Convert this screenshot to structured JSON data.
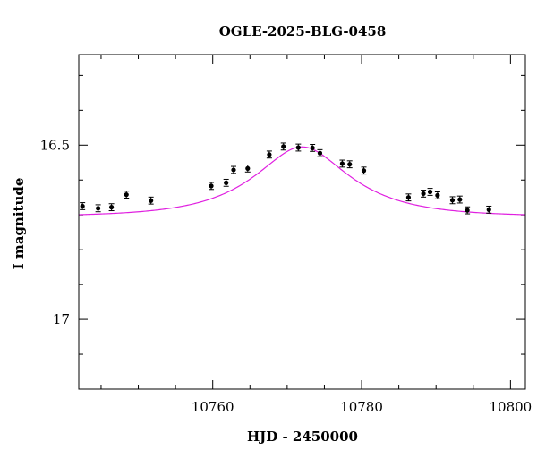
{
  "chart_data": {
    "type": "scatter",
    "title": "OGLE-2025-BLG-0458",
    "xlabel": "HJD - 2450000",
    "ylabel": "I magnitude",
    "xlim": [
      10742,
      10802
    ],
    "ylim": [
      17.2,
      16.24
    ],
    "y_inverted": true,
    "x_major_ticks": [
      10760,
      10780,
      10800
    ],
    "x_minor_ticks": [
      10745,
      10750,
      10755,
      10765,
      10770,
      10775,
      10785,
      10790,
      10795
    ],
    "y_major_ticks": [
      16.5,
      17.0
    ],
    "y_minor_ticks": [
      16.3,
      16.4,
      16.6,
      16.7,
      16.8,
      16.9,
      17.1
    ],
    "y_tick_labels": [
      "16.5",
      "17"
    ],
    "x_tick_labels": [
      "10760",
      "10780",
      "10800"
    ],
    "grid": false,
    "series": [
      {
        "values_error": 0.02,
        "points": [
          {
            "x": 10742.5,
            "y": 16.675
          },
          {
            "x": 10744.6,
            "y": 16.681
          },
          {
            "x": 10746.4,
            "y": 16.678
          },
          {
            "x": 10748.4,
            "y": 16.642
          },
          {
            "x": 10751.7,
            "y": 16.659
          },
          {
            "x": 10759.8,
            "y": 16.617
          },
          {
            "x": 10761.8,
            "y": 16.608
          },
          {
            "x": 10762.8,
            "y": 16.571
          },
          {
            "x": 10764.7,
            "y": 16.567
          },
          {
            "x": 10767.6,
            "y": 16.527
          },
          {
            "x": 10769.5,
            "y": 16.504
          },
          {
            "x": 10771.5,
            "y": 16.507
          },
          {
            "x": 10773.4,
            "y": 16.508
          },
          {
            "x": 10774.4,
            "y": 16.523
          },
          {
            "x": 10777.4,
            "y": 16.553
          },
          {
            "x": 10778.4,
            "y": 16.555
          },
          {
            "x": 10780.3,
            "y": 16.573
          },
          {
            "x": 10786.3,
            "y": 16.65
          },
          {
            "x": 10788.3,
            "y": 16.639
          },
          {
            "x": 10789.2,
            "y": 16.634
          },
          {
            "x": 10790.2,
            "y": 16.644
          },
          {
            "x": 10792.2,
            "y": 16.658
          },
          {
            "x": 10793.2,
            "y": 16.656
          },
          {
            "x": 10794.2,
            "y": 16.687
          },
          {
            "x": 10797.1,
            "y": 16.685
          }
        ]
      },
      {
        "model": "point-lens",
        "color": "#e020e0",
        "t0": 10772.0,
        "tE": 11.0,
        "u0": 0.5,
        "baseline_mag": 16.705,
        "peak_mag": 16.505
      }
    ]
  }
}
